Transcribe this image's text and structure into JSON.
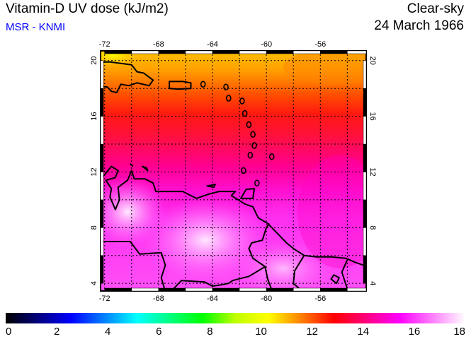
{
  "header": {
    "title": "Vitamin-D UV dose (kJ/m2)",
    "source": "MSR - KNMI",
    "condition": "Clear-sky",
    "date": "24 March 1966"
  },
  "map": {
    "lon_ticks": [
      "-72",
      "-68",
      "-64",
      "-60",
      "-56"
    ],
    "lat_ticks": [
      "20",
      "16",
      "12",
      "8",
      "4"
    ],
    "lon_values": [
      -72,
      -68,
      -64,
      -60,
      -56
    ],
    "lat_values": [
      20,
      16,
      12,
      8,
      4
    ],
    "extent": {
      "lon_min": -72.3,
      "lon_max": -52.6,
      "lat_min": 3.45,
      "lat_max": 20.7
    }
  },
  "colorbar": {
    "min": 0,
    "max": 18,
    "labels": [
      "0",
      "2",
      "4",
      "6",
      "8",
      "10",
      "12",
      "14",
      "16",
      "18"
    ],
    "stops": [
      "#000000",
      "#000080",
      "#0000ff",
      "#0080ff",
      "#00ffff",
      "#00ff80",
      "#00ff00",
      "#c0ff00",
      "#ffff00",
      "#ff8000",
      "#ff0000",
      "#ff0080",
      "#ff00ff",
      "#ff80ff",
      "#ffffff"
    ]
  }
}
